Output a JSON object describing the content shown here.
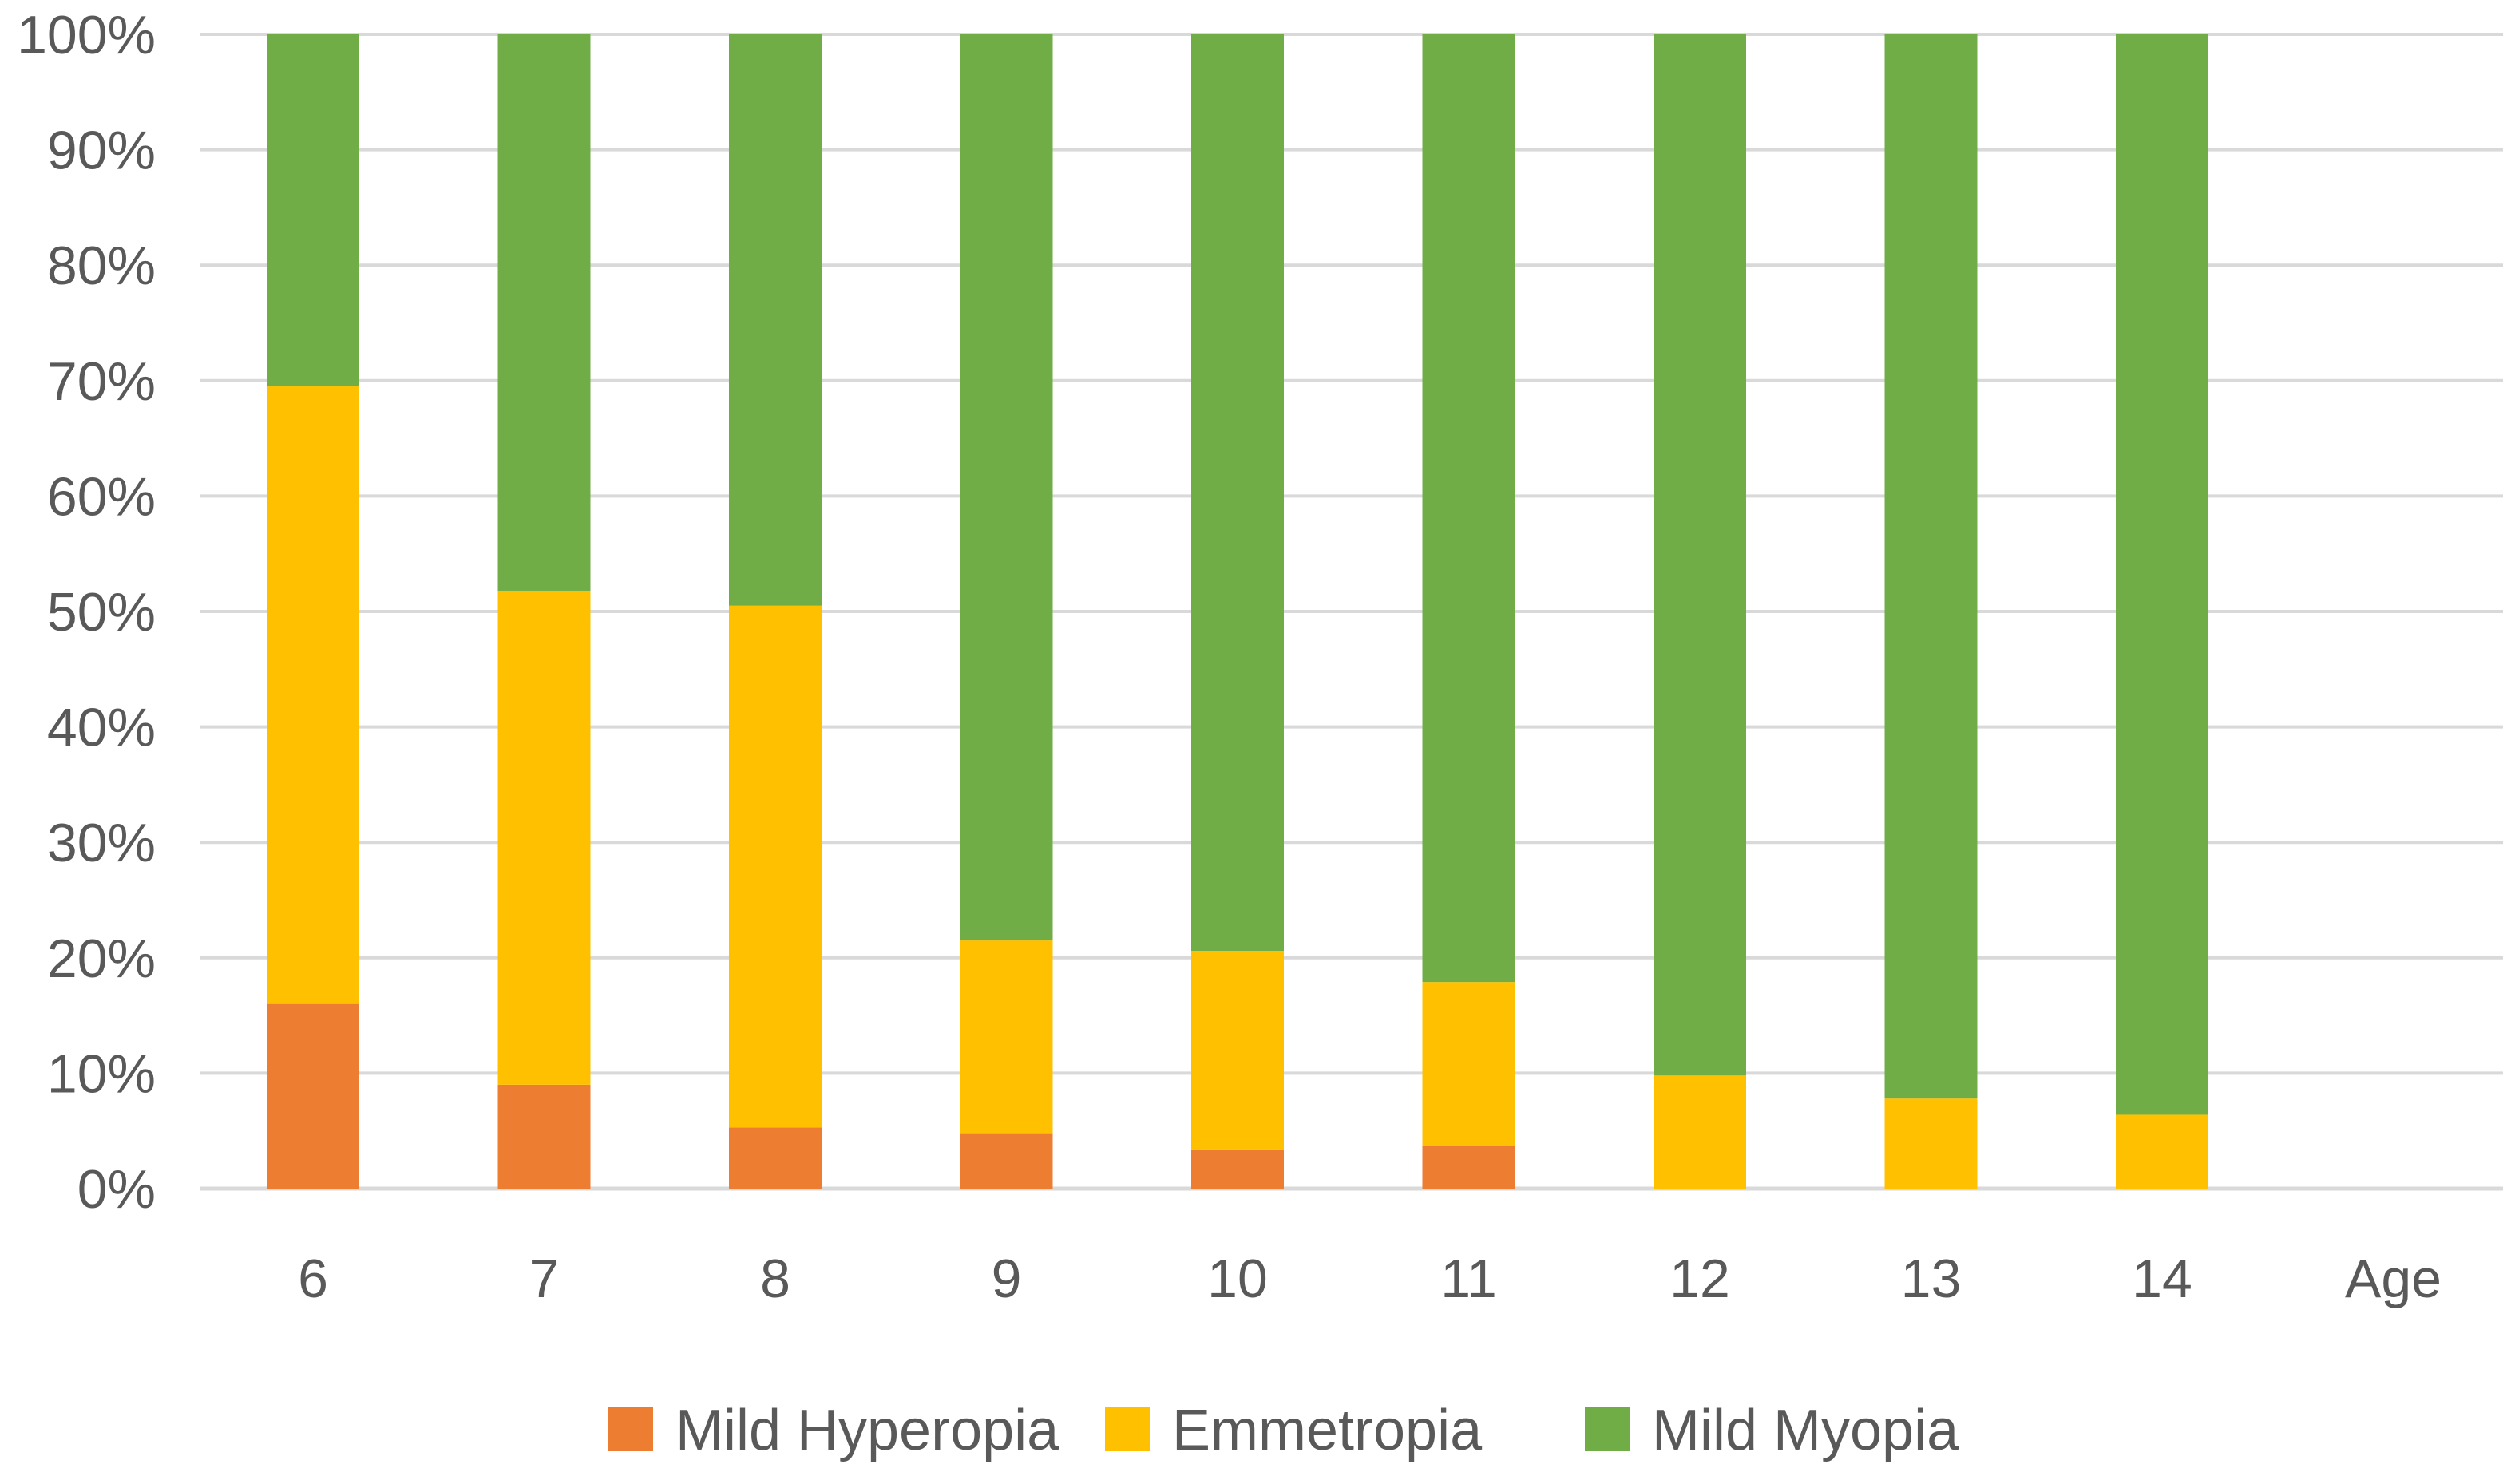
{
  "chart_data": {
    "type": "bar",
    "stacked": true,
    "normalized": true,
    "categories": [
      "6",
      "7",
      "8",
      "9",
      "10",
      "11",
      "12",
      "13",
      "14",
      "Age"
    ],
    "series": [
      {
        "name": "Mild Hyperopia",
        "color": "#ED7D31",
        "values": [
          16,
          9,
          5.3,
          4.8,
          3.4,
          3.7,
          0,
          0,
          0,
          null
        ]
      },
      {
        "name": "Emmetropia",
        "color": "#FFC000",
        "values": [
          53.5,
          42.8,
          45.2,
          16.7,
          17.2,
          14.2,
          9.8,
          7.8,
          6.4,
          null
        ]
      },
      {
        "name": "Mild Myopia",
        "color": "#70AD47",
        "values": [
          30.5,
          48.2,
          49.5,
          78.5,
          79.4,
          82.1,
          90.2,
          92.2,
          93.6,
          null
        ]
      }
    ],
    "y_ticks": [
      "0%",
      "10%",
      "20%",
      "30%",
      "40%",
      "50%",
      "60%",
      "70%",
      "80%",
      "90%",
      "100%"
    ],
    "ylim": [
      0,
      100
    ],
    "grid": true,
    "gridline_color": "#D9D9D9",
    "legend_position": "bottom"
  }
}
